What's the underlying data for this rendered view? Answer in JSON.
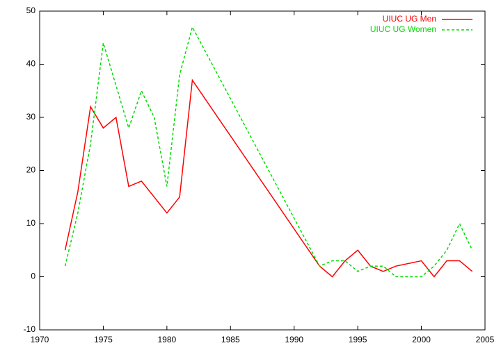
{
  "chart_data": {
    "type": "line",
    "xlim": [
      1970,
      2005
    ],
    "xticks": [
      1970,
      1975,
      1980,
      1985,
      1990,
      1995,
      2000,
      2005
    ],
    "ylim": [
      -10,
      50
    ],
    "yticks": [
      -10,
      0,
      10,
      20,
      30,
      40,
      50
    ],
    "legend": "top-right",
    "series": [
      {
        "name": "UIUC UG Men",
        "color": "#ff0000",
        "dash": "solid",
        "x": [
          1972,
          1973,
          1974,
          1975,
          1976,
          1977,
          1978,
          1980,
          1981,
          1982,
          1992,
          1993,
          1994,
          1995,
          1996,
          1997,
          1998,
          2000,
          2001,
          2002,
          2003,
          2004
        ],
        "values": [
          5,
          16,
          32,
          28,
          30,
          17,
          18,
          12,
          15,
          37,
          2,
          0,
          3,
          5,
          2,
          1,
          2,
          3,
          0,
          3,
          3,
          1
        ]
      },
      {
        "name": "UIUC UG Women",
        "color": "#00dd00",
        "dash": "dashed",
        "x": [
          1972,
          1973,
          1974,
          1975,
          1976,
          1977,
          1978,
          1979,
          1980,
          1981,
          1982,
          1992,
          1993,
          1994,
          1995,
          1996,
          1997,
          1998,
          1999,
          2000,
          2001,
          2002,
          2003,
          2004
        ],
        "values": [
          2,
          12,
          25,
          44,
          36,
          28,
          35,
          30,
          17,
          38,
          47,
          2,
          3,
          3,
          1,
          2,
          2,
          0,
          0,
          0,
          2,
          5,
          10,
          5
        ]
      }
    ]
  }
}
